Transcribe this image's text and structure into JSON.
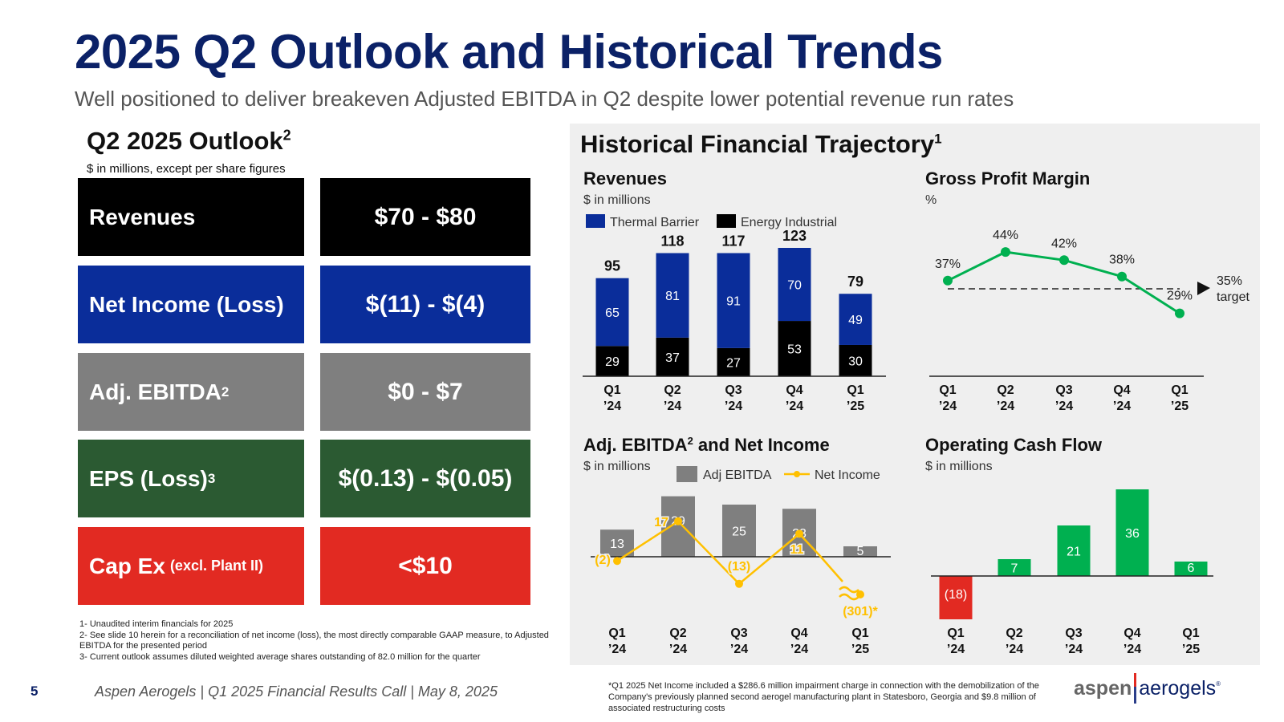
{
  "header": {
    "title": "2025 Q2 Outlook and Historical Trends",
    "subtitle": "Well positioned to deliver breakeven Adjusted EBITDA in Q2 despite lower potential revenue run rates"
  },
  "outlook": {
    "heading": "Q2 2025 Outlook",
    "heading_sup": "2",
    "units": "$ in millions, except per share figures",
    "rows": [
      {
        "label": "Revenues",
        "label_sup": "",
        "label_small": "",
        "value": "$70 - $80",
        "color": "#000000"
      },
      {
        "label": "Net Income (Loss)",
        "label_sup": "",
        "label_small": "",
        "value": "$(11) - $(4)",
        "color": "#0a2d9a"
      },
      {
        "label": "Adj. EBITDA",
        "label_sup": "2",
        "label_small": "",
        "value": "$0 - $7",
        "color": "#7f7f7f"
      },
      {
        "label": "EPS (Loss)",
        "label_sup": "3",
        "label_small": "",
        "value": "$(0.13) - $(0.05)",
        "color": "#2b5a32"
      },
      {
        "label": "Cap Ex",
        "label_sup": "",
        "label_small": "(excl. Plant II)",
        "value": "<$10",
        "color": "#e22a22"
      }
    ],
    "footnotes": [
      "1- Unaudited interim financials for 2025",
      "2- See slide 10 herein for a reconciliation of net income (loss), the most directly comparable GAAP measure, to Adjusted EBITDA for the presented period",
      "3- Current outlook assumes diluted weighted average shares outstanding of 82.0 million for the quarter"
    ]
  },
  "panel": {
    "title": "Historical Financial Trajectory",
    "title_sup": "1",
    "footnote": "*Q1 2025 Net Income included a $286.6 million impairment charge in connection with the demobilization of the Company's previously planned second aerogel manufacturing plant in Statesboro, Georgia and $9.8 million of associated restructuring costs"
  },
  "footer": {
    "page": "5",
    "text": "Aspen Aerogels | Q1 2025 Financial Results Call | May 8, 2025",
    "logo_left": "aspen",
    "logo_right": "aerogels",
    "logo_mark": "®"
  },
  "colors": {
    "navy": "#0b2167",
    "thermal": "#0a2d9a",
    "energy": "#000000",
    "green": "#00b050",
    "red": "#e22a22",
    "gray": "#7f7f7f",
    "orange": "#ffc000"
  },
  "chart_data": [
    {
      "id": "revenues",
      "type": "bar",
      "stacked": true,
      "title": "Revenues",
      "subtitle": "$ in millions",
      "categories": [
        "Q1 '24",
        "Q2 '24",
        "Q3 '24",
        "Q4 '24",
        "Q1 '25"
      ],
      "cat_line1": [
        "Q1",
        "Q2",
        "Q3",
        "Q4",
        "Q1"
      ],
      "cat_line2": [
        "’24",
        "’24",
        "’24",
        "’24",
        "’25"
      ],
      "series": [
        {
          "name": "Energy Industrial",
          "values": [
            29,
            37,
            27,
            53,
            30
          ]
        },
        {
          "name": "Thermal Barrier",
          "values": [
            65,
            81,
            91,
            70,
            49
          ]
        }
      ],
      "legend": [
        "Thermal Barrier",
        "Energy Industrial"
      ],
      "totals": [
        95,
        118,
        117,
        123,
        79
      ],
      "ylim": [
        0,
        130
      ]
    },
    {
      "id": "gpm",
      "type": "line",
      "title": "Gross Profit Margin",
      "subtitle": "%",
      "categories": [
        "Q1 '24",
        "Q2 '24",
        "Q3 '24",
        "Q4 '24",
        "Q1 '25"
      ],
      "cat_line1": [
        "Q1",
        "Q2",
        "Q3",
        "Q4",
        "Q1"
      ],
      "cat_line2": [
        "’24",
        "’24",
        "’24",
        "’24",
        "’25"
      ],
      "values": [
        37,
        44,
        42,
        38,
        29
      ],
      "labels": [
        "37%",
        "44%",
        "42%",
        "38%",
        "29%"
      ],
      "target": 35,
      "target_label_1": "35%",
      "target_label_2": "target",
      "ylim": [
        0,
        60
      ]
    },
    {
      "id": "ebitda",
      "type": "bar",
      "title": "Adj. EBITDA",
      "title_sup": "2",
      "title_rest": " and Net Income",
      "subtitle": "$ in millions",
      "categories": [
        "Q1 '24",
        "Q2 '24",
        "Q3 '24",
        "Q4 '24",
        "Q1 '25"
      ],
      "cat_line1": [
        "Q1",
        "Q2",
        "Q3",
        "Q4",
        "Q1"
      ],
      "cat_line2": [
        "’24",
        "’24",
        "’24",
        "’24",
        "’25"
      ],
      "series": [
        {
          "name": "Adj EBITDA",
          "type": "bar",
          "values": [
            13,
            29,
            25,
            23,
            5
          ],
          "labels": [
            "13",
            "29",
            "25",
            "23",
            "5"
          ]
        },
        {
          "name": "Net Income",
          "type": "line",
          "values": [
            -2,
            17,
            -13,
            11,
            -301
          ],
          "labels": [
            "(2)",
            "17",
            "(13)",
            "11",
            "(301)*"
          ]
        }
      ],
      "legend": [
        "Adj EBITDA",
        "Net Income"
      ],
      "axis_break": true,
      "ylim": [
        -25,
        35
      ]
    },
    {
      "id": "ocf",
      "type": "bar",
      "title": "Operating Cash Flow",
      "subtitle": "$ in millions",
      "categories": [
        "Q1 '24",
        "Q2 '24",
        "Q3 '24",
        "Q4 '24",
        "Q1 '25"
      ],
      "cat_line1": [
        "Q1",
        "Q2",
        "Q3",
        "Q4",
        "Q1"
      ],
      "cat_line2": [
        "’24",
        "’24",
        "’24",
        "’24",
        "’25"
      ],
      "values": [
        -18,
        7,
        21,
        36,
        6
      ],
      "labels": [
        "(18)",
        "7",
        "21",
        "36",
        "6"
      ],
      "ylim": [
        -20,
        40
      ]
    }
  ]
}
